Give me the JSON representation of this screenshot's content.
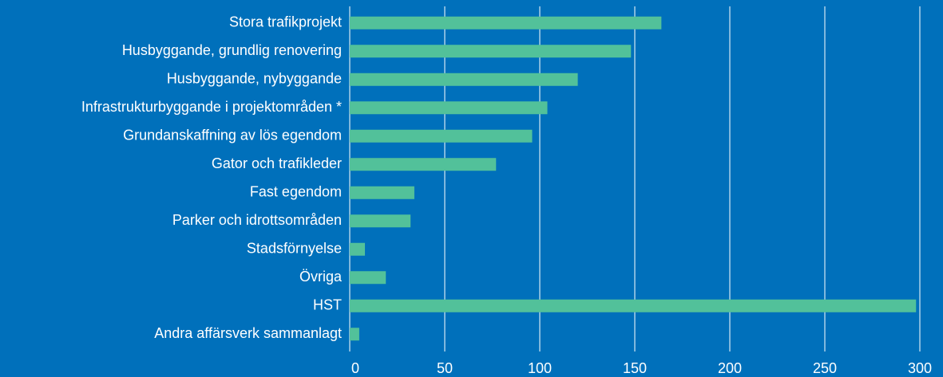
{
  "chart_data": {
    "type": "bar",
    "orientation": "horizontal",
    "categories": [
      "Stora trafikprojekt",
      "Husbyggande, grundlig renovering",
      "Husbyggande, nybyggande",
      "Infrastrukturbyggande i projektområden *",
      "Grundanskaffning av lös egendom",
      "Gator och trafikleder",
      "Fast egendom",
      "Parker och idrottsområden",
      "Stadsförnyelse",
      "Övriga",
      "HST",
      "Andra affärsverk sammanlagt"
    ],
    "values": [
      164,
      148,
      120,
      104,
      96,
      77,
      34,
      32,
      8,
      19,
      298,
      5
    ],
    "color": "#52c19a",
    "xlim": [
      0,
      300
    ],
    "xticks": [
      0,
      50,
      100,
      150,
      200,
      250,
      300
    ],
    "grid": true
  }
}
